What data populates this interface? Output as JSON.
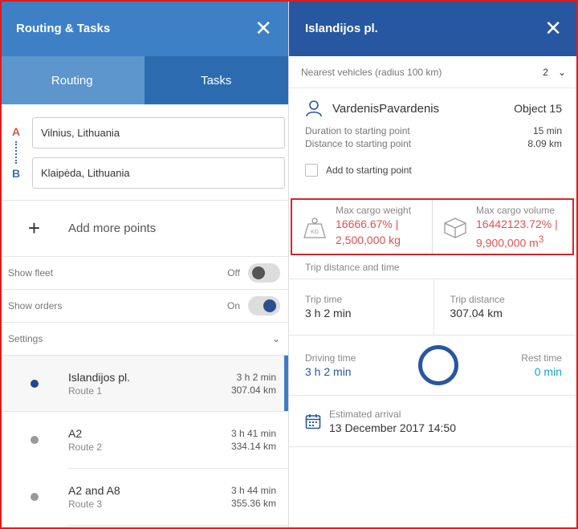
{
  "left_panel": {
    "title": "Routing & Tasks",
    "close_glyph": "✕",
    "tabs": [
      {
        "label": "Routing",
        "active": true
      },
      {
        "label": "Tasks",
        "active": false
      }
    ],
    "points": {
      "a_letter": "A",
      "b_letter": "B",
      "start": "Vilnius, Lithuania",
      "end": "Klaipėda, Lithuania"
    },
    "add_points": {
      "plus": "+",
      "label": "Add more points"
    },
    "show_fleet": {
      "label": "Show fleet",
      "state": "Off"
    },
    "show_orders": {
      "label": "Show orders",
      "state": "On"
    },
    "settings": {
      "label": "Settings",
      "chevron": "⌄"
    },
    "routes": [
      {
        "name": "Islandijos pl.",
        "sub": "Route 1",
        "time": "3 h 2 min",
        "distance": "307.04 km",
        "selected": true
      },
      {
        "name": "A2",
        "sub": "Route 2",
        "time": "3 h 41 min",
        "distance": "334.14 km",
        "selected": false
      },
      {
        "name": "A2 and A8",
        "sub": "Route 3",
        "time": "3 h 44 min",
        "distance": "355.36 km",
        "selected": false
      }
    ]
  },
  "right_panel": {
    "title": "Islandijos pl.",
    "close_glyph": "✕",
    "nearest": {
      "label": "Nearest vehicles (radius 100 km)",
      "count": "2",
      "chevron": "⌄"
    },
    "vehicle": {
      "driver": "VardenisPavardenis",
      "object": "Object 15",
      "duration_label": "Duration to starting point",
      "duration_value": "15 min",
      "distance_label": "Distance to starting point",
      "distance_value": "8.09 km",
      "checkbox_label": "Add to starting point"
    },
    "cargo": {
      "weight_label": "Max cargo weight",
      "weight_line1": "16666.67% |",
      "weight_line2": "2,500,000 kg",
      "weight_icon_text": "KG",
      "volume_label": "Max cargo volume",
      "volume_line1": "16442123.72% |",
      "volume_line2": "9,900,000 m",
      "volume_sup": "3"
    },
    "trip_section_title": "Trip distance and time",
    "trip_time_label": "Trip time",
    "trip_time_value": "3 h 2 min",
    "trip_distance_label": "Trip distance",
    "trip_distance_value": "307.04 km",
    "driving_time_label": "Driving time",
    "driving_time_value": "3 h 2 min",
    "rest_time_label": "Rest time",
    "rest_time_value": "0 min",
    "arrival_label": "Estimated arrival",
    "arrival_value": "13 December 2017 14:50"
  },
  "colors": {
    "left_header": "#3d80c6",
    "right_header": "#2757a0",
    "highlight_border": "#d9242b",
    "cargo_value": "#e05050",
    "rest_value": "#11a6d4"
  }
}
